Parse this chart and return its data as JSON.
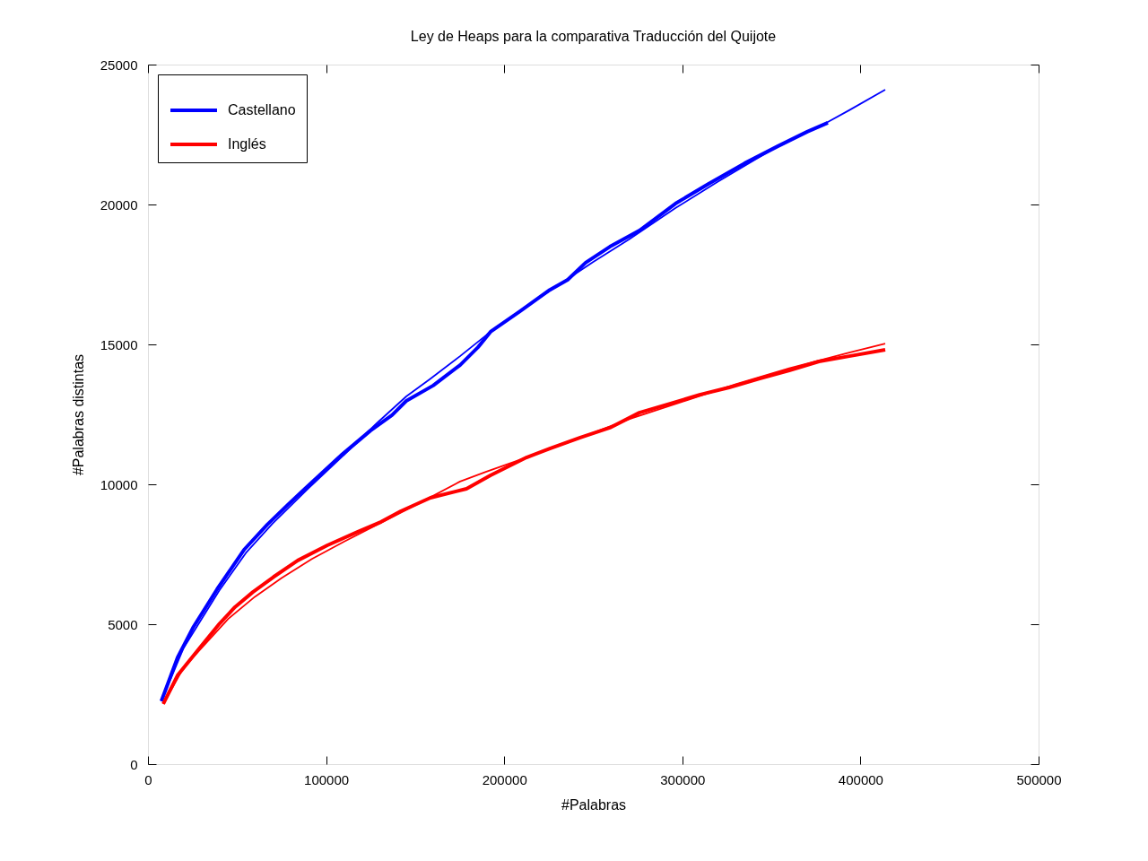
{
  "chart_data": {
    "type": "line",
    "title": "Ley de Heaps para la comparativa Traducción del Quijote",
    "xlabel": "#Palabras",
    "ylabel": "#Palabras distintas",
    "xlim": [
      0,
      500000
    ],
    "ylim": [
      0,
      25000
    ],
    "xticks": [
      0,
      100000,
      200000,
      300000,
      400000,
      500000
    ],
    "yticks": [
      0,
      5000,
      10000,
      15000,
      20000,
      25000
    ],
    "legend": "top left",
    "line_style": "solid",
    "series": [
      {
        "name": "Castellano",
        "color": "#0000ff",
        "x": [
          7500,
          16600,
          25200,
          38800,
          53900,
          67000,
          79000,
          88100,
          108300,
          124900,
          137000,
          145000,
          160100,
          175200,
          185300,
          192300,
          209000,
          225600,
          235600,
          245700,
          259300,
          275900,
          296100,
          314700,
          334900,
          353500,
          370100,
          381700
        ],
        "values": [
          2250,
          3810,
          4870,
          6250,
          7660,
          8560,
          9300,
          9840,
          11030,
          11920,
          12470,
          12980,
          13530,
          14260,
          14900,
          15450,
          16190,
          16950,
          17310,
          17920,
          18490,
          19070,
          20030,
          20740,
          21470,
          22080,
          22600,
          22920
        ]
      },
      {
        "name": "Inglés",
        "color": "#ff0000",
        "x": [
          8560,
          16600,
          28700,
          40300,
          48800,
          58900,
          70500,
          84100,
          100700,
          117300,
          130900,
          141900,
          158600,
          178800,
          192300,
          212500,
          225600,
          242700,
          259300,
          275900,
          293000,
          309700,
          326300,
          343400,
          360000,
          376700,
          393700,
          413900
        ],
        "values": [
          2150,
          3170,
          4130,
          5030,
          5610,
          6150,
          6690,
          7280,
          7820,
          8290,
          8660,
          9040,
          9520,
          9840,
          10320,
          10960,
          11280,
          11670,
          12020,
          12560,
          12880,
          13200,
          13460,
          13780,
          14070,
          14390,
          14580,
          14810
        ]
      },
      {
        "color": "#0000ff",
        "x": [
          7500,
          20000,
          40000,
          55000,
          70000,
          90000,
          110000,
          128400,
          145000,
          158100,
          175200,
          190300,
          210000,
          230000,
          250000,
          270000,
          296100,
          320000,
          350000,
          381700,
          393700,
          413900
        ],
        "values": [
          2250,
          4150,
          6200,
          7550,
          8600,
          9850,
          11050,
          12180,
          13140,
          13750,
          14580,
          15350,
          16250,
          17100,
          17950,
          18750,
          19870,
          20820,
          21950,
          22950,
          23370,
          24100
        ]
      },
      {
        "color": "#ff0000",
        "x": [
          8560,
          20000,
          45000,
          60000,
          75000,
          92000,
          110000,
          130000,
          150000,
          175200,
          190000,
          210000,
          240000,
          270000,
          300000,
          330000,
          360000,
          393700,
          413900
        ],
        "values": [
          2150,
          3450,
          5190,
          5980,
          6650,
          7330,
          7950,
          8600,
          9250,
          10100,
          10450,
          10900,
          11600,
          12330,
          12950,
          13580,
          14150,
          14710,
          15030
        ]
      }
    ]
  }
}
